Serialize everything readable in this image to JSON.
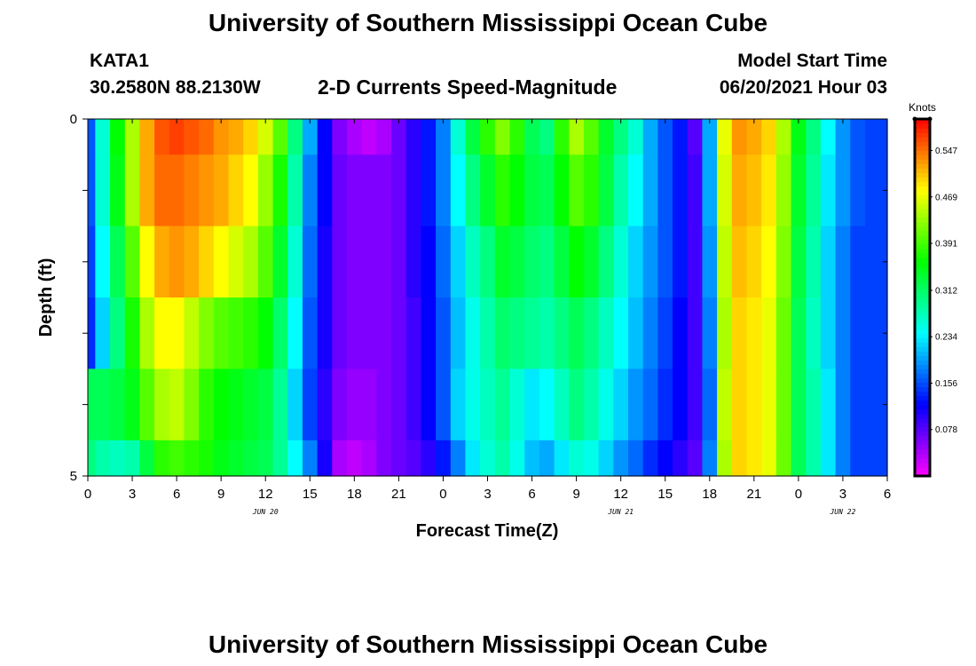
{
  "header": {
    "title": "University of Southern Mississippi Ocean Cube",
    "station": "KATA1",
    "coords": "30.2580N  88.2130W",
    "subtitle": "2-D Currents Speed-Magnitude",
    "model_start_label": "Model Start Time",
    "model_start_value": "06/20/2021 Hour 03"
  },
  "footer": {
    "title": "University of Southern Mississippi Ocean Cube"
  },
  "chart_data": {
    "type": "heatmap",
    "xlabel": "Forecast Time(Z)",
    "ylabel": "Depth (ft)",
    "ylim": [
      0,
      5
    ],
    "y_ticks": [
      "0",
      "5"
    ],
    "x_tick_labels": [
      "0",
      "3",
      "6",
      "9",
      "12",
      "15",
      "18",
      "21",
      "0",
      "3",
      "6",
      "9",
      "12",
      "15",
      "18",
      "21",
      "0",
      "3",
      "6"
    ],
    "x_range_hours": [
      0,
      54
    ],
    "day_labels": [
      {
        "text": "JUN 20",
        "hour": 12
      },
      {
        "text": "JUN 21",
        "hour": 36
      },
      {
        "text": "JUN 22",
        "hour": 51
      }
    ],
    "colorbar": {
      "title": "Knots",
      "range": [
        0.0,
        0.6
      ],
      "ticks": [
        "0.547",
        "0.469",
        "0.391",
        "0.312",
        "0.234",
        "0.156",
        "0.078"
      ],
      "tick_values": [
        0.547,
        0.469,
        0.391,
        0.312,
        0.234,
        0.156,
        0.078
      ]
    },
    "depth_bins_ft": [
      0,
      0.5,
      1.5,
      2.5,
      3.5,
      4.5,
      5
    ],
    "x_hours": [
      0,
      1,
      2,
      3,
      4,
      5,
      6,
      7,
      8,
      9,
      10,
      11,
      12,
      13,
      14,
      15,
      16,
      17,
      18,
      19,
      20,
      21,
      22,
      23,
      24,
      25,
      26,
      27,
      28,
      29,
      30,
      31,
      32,
      33,
      34,
      35,
      36,
      37,
      38,
      39,
      40,
      41,
      42,
      43,
      44,
      45,
      46,
      47,
      48,
      49,
      50,
      51,
      52,
      53,
      54
    ],
    "series": [
      {
        "depth": "0.0-0.5",
        "values": [
          0.16,
          0.26,
          0.36,
          0.44,
          0.52,
          0.56,
          0.57,
          0.56,
          0.55,
          0.53,
          0.52,
          0.5,
          0.46,
          0.4,
          0.3,
          0.2,
          0.12,
          0.06,
          0.04,
          0.03,
          0.04,
          0.07,
          0.1,
          0.13,
          0.18,
          0.26,
          0.33,
          0.38,
          0.42,
          0.38,
          0.32,
          0.3,
          0.38,
          0.44,
          0.4,
          0.34,
          0.3,
          0.26,
          0.2,
          0.16,
          0.13,
          0.08,
          0.2,
          0.47,
          0.53,
          0.52,
          0.5,
          0.44,
          0.35,
          0.3,
          0.24,
          0.19,
          0.16,
          0.15,
          0.15
        ]
      },
      {
        "depth": "0.5-1.5",
        "values": [
          0.16,
          0.26,
          0.35,
          0.44,
          0.52,
          0.55,
          0.55,
          0.54,
          0.53,
          0.52,
          0.5,
          0.48,
          0.43,
          0.37,
          0.28,
          0.18,
          0.12,
          0.07,
          0.06,
          0.06,
          0.06,
          0.07,
          0.1,
          0.13,
          0.18,
          0.24,
          0.3,
          0.34,
          0.38,
          0.36,
          0.33,
          0.32,
          0.36,
          0.4,
          0.38,
          0.33,
          0.28,
          0.24,
          0.2,
          0.16,
          0.13,
          0.09,
          0.2,
          0.46,
          0.52,
          0.51,
          0.49,
          0.43,
          0.34,
          0.29,
          0.23,
          0.19,
          0.16,
          0.15,
          0.15
        ]
      },
      {
        "depth": "1.5-2.5",
        "values": [
          0.15,
          0.24,
          0.32,
          0.4,
          0.48,
          0.52,
          0.53,
          0.52,
          0.5,
          0.48,
          0.46,
          0.44,
          0.4,
          0.34,
          0.26,
          0.17,
          0.11,
          0.07,
          0.06,
          0.06,
          0.06,
          0.07,
          0.1,
          0.12,
          0.17,
          0.22,
          0.27,
          0.3,
          0.34,
          0.33,
          0.31,
          0.3,
          0.33,
          0.36,
          0.34,
          0.3,
          0.26,
          0.22,
          0.19,
          0.16,
          0.13,
          0.09,
          0.19,
          0.45,
          0.51,
          0.5,
          0.48,
          0.42,
          0.33,
          0.28,
          0.22,
          0.18,
          0.15,
          0.15,
          0.15
        ]
      },
      {
        "depth": "2.5-3.5",
        "values": [
          0.14,
          0.22,
          0.3,
          0.37,
          0.44,
          0.48,
          0.48,
          0.45,
          0.42,
          0.4,
          0.39,
          0.38,
          0.36,
          0.31,
          0.24,
          0.16,
          0.11,
          0.07,
          0.06,
          0.06,
          0.06,
          0.07,
          0.09,
          0.12,
          0.16,
          0.21,
          0.25,
          0.28,
          0.31,
          0.3,
          0.29,
          0.28,
          0.3,
          0.32,
          0.3,
          0.27,
          0.24,
          0.21,
          0.18,
          0.15,
          0.12,
          0.09,
          0.18,
          0.44,
          0.5,
          0.49,
          0.47,
          0.41,
          0.32,
          0.27,
          0.22,
          0.18,
          0.15,
          0.15,
          0.15
        ]
      },
      {
        "depth": "3.5-4.5",
        "values": [
          0.32,
          0.32,
          0.33,
          0.35,
          0.4,
          0.44,
          0.45,
          0.42,
          0.38,
          0.36,
          0.35,
          0.34,
          0.33,
          0.29,
          0.22,
          0.15,
          0.1,
          0.06,
          0.05,
          0.05,
          0.06,
          0.07,
          0.09,
          0.12,
          0.16,
          0.22,
          0.25,
          0.27,
          0.29,
          0.26,
          0.23,
          0.24,
          0.27,
          0.3,
          0.28,
          0.25,
          0.22,
          0.19,
          0.17,
          0.14,
          0.12,
          0.09,
          0.17,
          0.45,
          0.5,
          0.49,
          0.47,
          0.41,
          0.32,
          0.28,
          0.23,
          0.18,
          0.15,
          0.15,
          0.15
        ]
      },
      {
        "depth": "4.5-5.0",
        "values": [
          0.3,
          0.28,
          0.27,
          0.28,
          0.33,
          0.38,
          0.39,
          0.38,
          0.37,
          0.35,
          0.34,
          0.33,
          0.32,
          0.29,
          0.24,
          0.18,
          0.11,
          0.04,
          0.03,
          0.04,
          0.06,
          0.07,
          0.08,
          0.1,
          0.13,
          0.18,
          0.23,
          0.26,
          0.28,
          0.25,
          0.21,
          0.2,
          0.23,
          0.26,
          0.25,
          0.22,
          0.19,
          0.17,
          0.14,
          0.12,
          0.1,
          0.08,
          0.18,
          0.44,
          0.5,
          0.49,
          0.47,
          0.41,
          0.32,
          0.28,
          0.23,
          0.18,
          0.15,
          0.15,
          0.15
        ]
      }
    ]
  }
}
